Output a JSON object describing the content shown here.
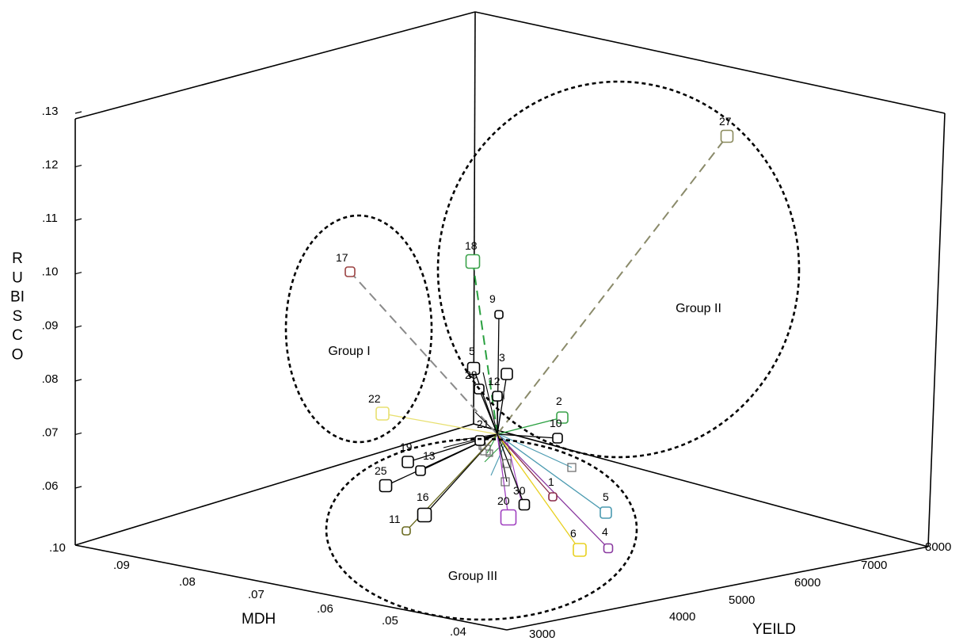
{
  "chart_data": {
    "type": "scatter",
    "title": "",
    "axes": {
      "vertical": {
        "label": "RUBISCO",
        "ticks": [
          ".06",
          ".07",
          ".08",
          ".09",
          ".10",
          ".11",
          ".12",
          ".13"
        ]
      },
      "left_depth": {
        "label": "MDH",
        "ticks": [
          ".10",
          ".09",
          ".08",
          ".07",
          ".06",
          ".05",
          ".04"
        ]
      },
      "right_depth": {
        "label": "YEILD",
        "ticks": [
          "3000",
          "4000",
          "5000",
          "6000",
          "7000",
          "8000"
        ]
      }
    },
    "groups": [
      {
        "label": "Group I"
      },
      {
        "label": "Group II"
      },
      {
        "label": "Group III"
      }
    ],
    "points": [
      {
        "label": "27",
        "group": "Group II",
        "color": "#8a8a5c"
      },
      {
        "label": "18",
        "group": "Group II",
        "color": "#3aa24a"
      },
      {
        "label": "9",
        "group": "Group II",
        "color": "#000000"
      },
      {
        "label": "3",
        "group": "Group II",
        "color": "#000000"
      },
      {
        "label": "2",
        "group": "Group II",
        "color": "#3aa24a"
      },
      {
        "label": "10",
        "group": "Group II",
        "color": "#000000"
      },
      {
        "label": "17",
        "group": "Group I",
        "color": "#9a4040"
      },
      {
        "label": "22",
        "group": "Group I",
        "color": "#e8e070"
      },
      {
        "label": "5",
        "group": "",
        "color": "#000000"
      },
      {
        "label": "28",
        "group": "",
        "color": "#000000"
      },
      {
        "label": "12",
        "group": "",
        "color": "#000000"
      },
      {
        "label": "21",
        "group": "",
        "color": "#000000"
      },
      {
        "label": "19",
        "group": "Group III",
        "color": "#000000"
      },
      {
        "label": "13",
        "group": "Group III",
        "color": "#000000"
      },
      {
        "label": "25",
        "group": "Group III",
        "color": "#000000"
      },
      {
        "label": "16",
        "group": "Group III",
        "color": "#000000"
      },
      {
        "label": "11",
        "group": "Group III",
        "color": "#6a6a20"
      },
      {
        "label": "1",
        "group": "Group III",
        "color": "#8a2a4a"
      },
      {
        "label": "5",
        "group": "Group III",
        "color": "#4a9ab0"
      },
      {
        "label": "4",
        "group": "Group III",
        "color": "#8a3aa0"
      },
      {
        "label": "6",
        "group": "Group III",
        "color": "#e8d020"
      },
      {
        "label": "20",
        "group": "Group III",
        "color": "#a040c0"
      },
      {
        "label": "30",
        "group": "Group III",
        "color": "#000000"
      }
    ]
  }
}
